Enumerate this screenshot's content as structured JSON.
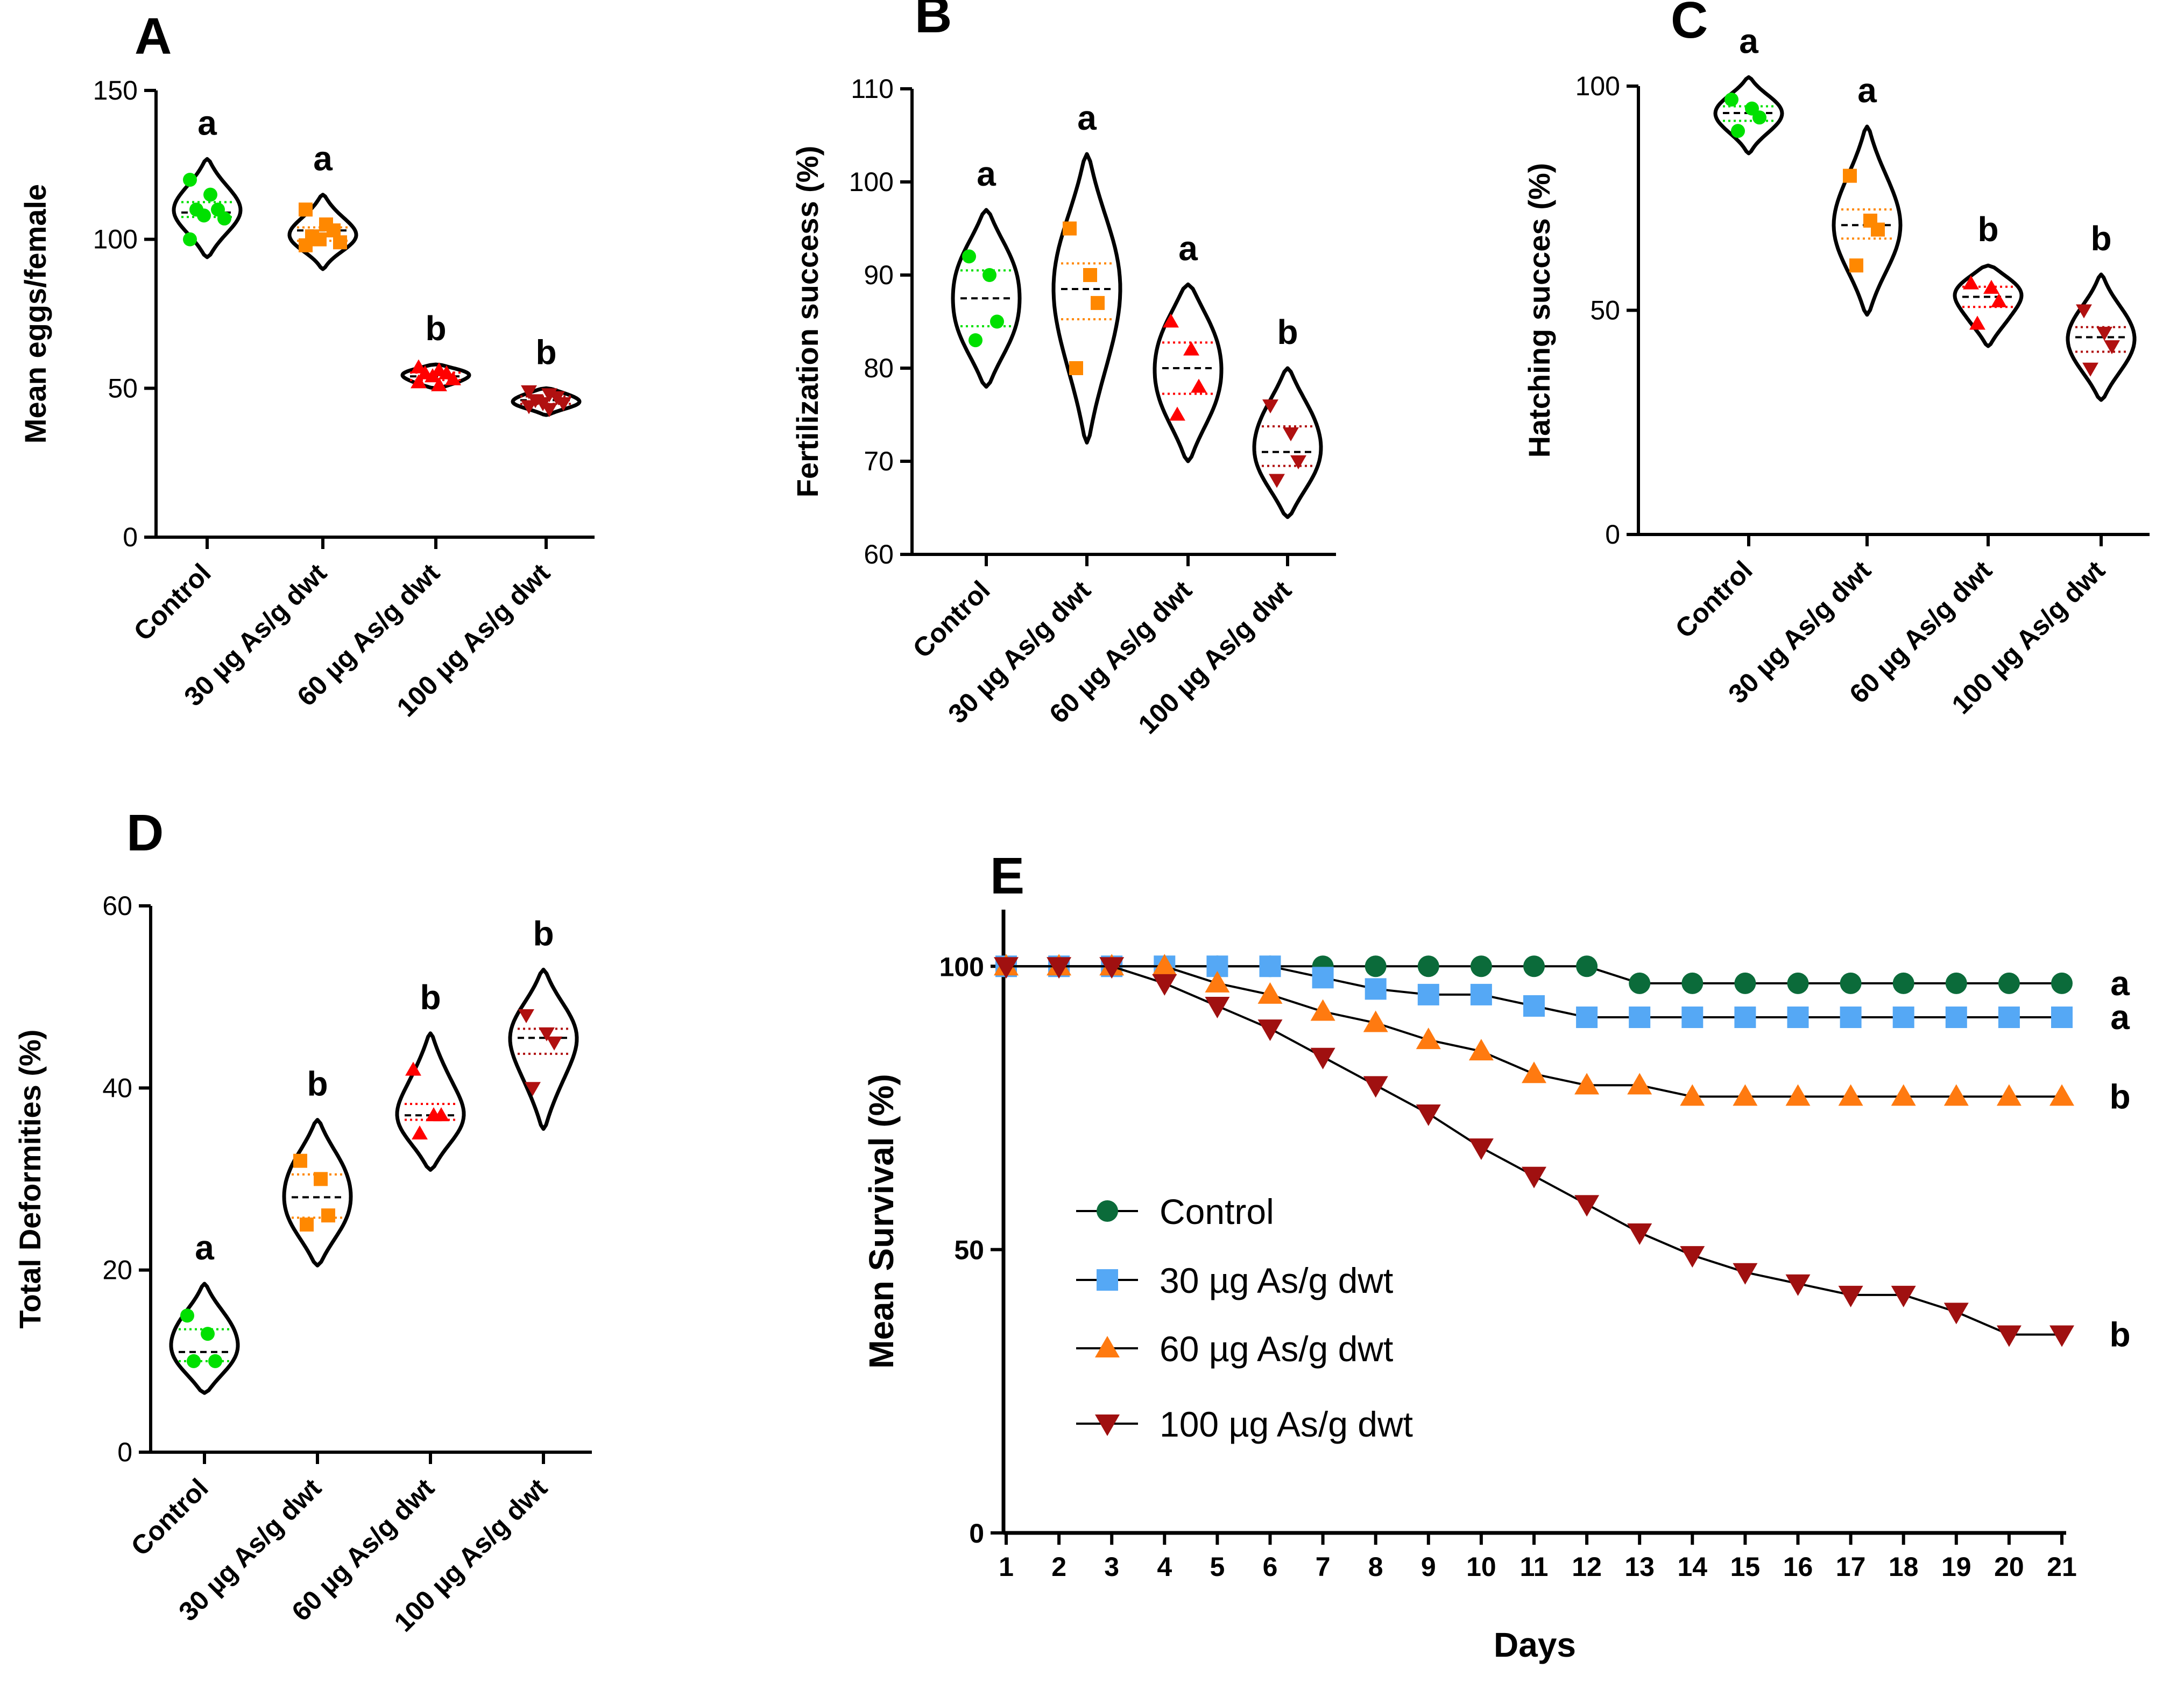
{
  "colors": {
    "control": "#00e000",
    "g30": "#ff8800",
    "g60": "#ff0000",
    "g100": "#b01010",
    "violin": "#000000",
    "survival_control": "#0b6b3a",
    "survival_30": "#55a8f5",
    "survival_60": "#ff7a10",
    "survival_100": "#a01010"
  },
  "chart_data": [
    {
      "panel": "A",
      "type": "violin",
      "ylabel": "Mean eggs/female",
      "ylim": [
        0,
        150
      ],
      "yticks": [
        "0",
        "50",
        "100",
        "150"
      ],
      "categories": [
        "Control",
        "30 µg As/g dwt",
        "60 µg As/g dwt",
        "100 µg As/g dwt"
      ],
      "markers": [
        "circle",
        "square",
        "triangle-up",
        "triangle-down"
      ],
      "letters": [
        "a",
        "a",
        "b",
        "b"
      ],
      "series": [
        {
          "name": "Control",
          "values": [
            120,
            115,
            110,
            110,
            108,
            107,
            100
          ]
        },
        {
          "name": "30 µg As/g dwt",
          "values": [
            110,
            105,
            103,
            101,
            100,
            99,
            98
          ]
        },
        {
          "name": "60 µg As/g dwt",
          "values": [
            57,
            56,
            55,
            55,
            54,
            53,
            52,
            51
          ]
        },
        {
          "name": "100 µg As/g dwt",
          "values": [
            49,
            48,
            47,
            46,
            45,
            45,
            44,
            43
          ]
        }
      ],
      "medians": [
        109,
        103,
        54,
        46
      ],
      "range": [
        [
          94,
          127
        ],
        [
          90,
          115
        ],
        [
          50,
          58
        ],
        [
          41,
          50
        ]
      ]
    },
    {
      "panel": "B",
      "type": "violin",
      "ylabel": "Fertilization success (%)",
      "ylim": [
        60,
        110
      ],
      "yticks": [
        "60",
        "70",
        "80",
        "90",
        "100",
        "110"
      ],
      "categories": [
        "Control",
        "30 µg As/g dwt",
        "60 µg As/g dwt",
        "100 µg As/g dwt"
      ],
      "markers": [
        "circle",
        "square",
        "triangle-up",
        "triangle-down"
      ],
      "letters": [
        "a",
        "a",
        "a",
        "b"
      ],
      "series": [
        {
          "name": "Control",
          "values": [
            92,
            90,
            85,
            83
          ]
        },
        {
          "name": "30 µg As/g dwt",
          "values": [
            95,
            90,
            87,
            80
          ]
        },
        {
          "name": "60 µg As/g dwt",
          "values": [
            85,
            82,
            78,
            75
          ]
        },
        {
          "name": "100 µg As/g dwt",
          "values": [
            76,
            73,
            70,
            68
          ]
        }
      ],
      "medians": [
        87.5,
        88.5,
        80,
        71
      ],
      "range": [
        [
          78,
          97
        ],
        [
          72,
          103
        ],
        [
          70,
          89
        ],
        [
          64,
          80
        ]
      ]
    },
    {
      "panel": "C",
      "type": "violin",
      "ylabel": "Hatching succes (%)",
      "ylim": [
        0,
        100
      ],
      "yticks": [
        "0",
        "50",
        "100"
      ],
      "categories": [
        "Control",
        "30 µg As/g dwt",
        "60 µg As/g dwt",
        "100 µg As/g dwt"
      ],
      "markers": [
        "circle",
        "square",
        "triangle-up",
        "triangle-down"
      ],
      "letters": [
        "a",
        "a",
        "b",
        "b"
      ],
      "series": [
        {
          "name": "Control",
          "values": [
            97,
            95,
            93,
            90
          ]
        },
        {
          "name": "30 µg As/g dwt",
          "values": [
            80,
            70,
            68,
            60
          ]
        },
        {
          "name": "60 µg As/g dwt",
          "values": [
            56,
            55,
            52,
            47
          ]
        },
        {
          "name": "100 µg As/g dwt",
          "values": [
            50,
            45,
            42,
            37
          ]
        }
      ],
      "medians": [
        94,
        69,
        53,
        44
      ],
      "range": [
        [
          85,
          102
        ],
        [
          49,
          91
        ],
        [
          42,
          60
        ],
        [
          30,
          58
        ]
      ]
    },
    {
      "panel": "D",
      "type": "violin",
      "ylabel": "Total Deformities (%)",
      "ylim": [
        0,
        60
      ],
      "yticks": [
        "0",
        "20",
        "40",
        "60"
      ],
      "categories": [
        "Control",
        "30 µg As/g dwt",
        "60 µg As/g dwt",
        "100 µg As/g dwt"
      ],
      "markers": [
        "circle",
        "square",
        "triangle-up",
        "triangle-down"
      ],
      "letters": [
        "a",
        "b",
        "b",
        "b"
      ],
      "series": [
        {
          "name": "Control",
          "values": [
            15,
            13,
            10,
            10
          ]
        },
        {
          "name": "30 µg As/g dwt",
          "values": [
            32,
            30,
            26,
            25
          ]
        },
        {
          "name": "60 µg As/g dwt",
          "values": [
            42,
            37,
            37,
            35
          ]
        },
        {
          "name": "100 µg As/g dwt",
          "values": [
            48,
            46,
            45,
            40
          ]
        }
      ],
      "medians": [
        11,
        28,
        37,
        45.5
      ],
      "range": [
        [
          6.5,
          18.5
        ],
        [
          20.5,
          36.5
        ],
        [
          31,
          46
        ],
        [
          35.5,
          53
        ]
      ]
    },
    {
      "panel": "E",
      "type": "line",
      "xlabel": "Days",
      "ylabel": "Mean Survival (%)",
      "ylim": [
        0,
        110
      ],
      "yticks": [
        "0",
        "50",
        "100"
      ],
      "x": [
        1,
        2,
        3,
        4,
        5,
        6,
        7,
        8,
        9,
        10,
        11,
        12,
        13,
        14,
        15,
        16,
        17,
        18,
        19,
        20,
        21
      ],
      "series": [
        {
          "name": "Control",
          "marker": "circle",
          "letter": "a",
          "values": [
            100,
            100,
            100,
            100,
            100,
            100,
            100,
            100,
            100,
            100,
            100,
            100,
            97,
            97,
            97,
            97,
            97,
            97,
            97,
            97,
            97
          ]
        },
        {
          "name": "30 µg As/g dwt",
          "marker": "square",
          "letter": "a",
          "values": [
            100,
            100,
            100,
            100,
            100,
            100,
            98,
            96,
            95,
            95,
            93,
            91,
            91,
            91,
            91,
            91,
            91,
            91,
            91,
            91,
            91
          ]
        },
        {
          "name": "60 µg As/g dwt",
          "marker": "triangle-up",
          "letter": "b",
          "values": [
            100,
            100,
            100,
            100,
            97,
            95,
            92,
            90,
            87,
            85,
            81,
            79,
            79,
            77,
            77,
            77,
            77,
            77,
            77,
            77,
            77
          ]
        },
        {
          "name": "100 µg As/g dwt",
          "marker": "triangle-down",
          "letter": "b",
          "values": [
            100,
            100,
            100,
            97,
            93,
            89,
            84,
            79,
            74,
            68,
            63,
            58,
            53,
            49,
            46,
            44,
            42,
            42,
            39,
            35,
            35
          ]
        }
      ],
      "legend": [
        "Control",
        "30 µg As/g dwt",
        "60 µg As/g dwt",
        "100 µg As/g dwt"
      ]
    }
  ]
}
